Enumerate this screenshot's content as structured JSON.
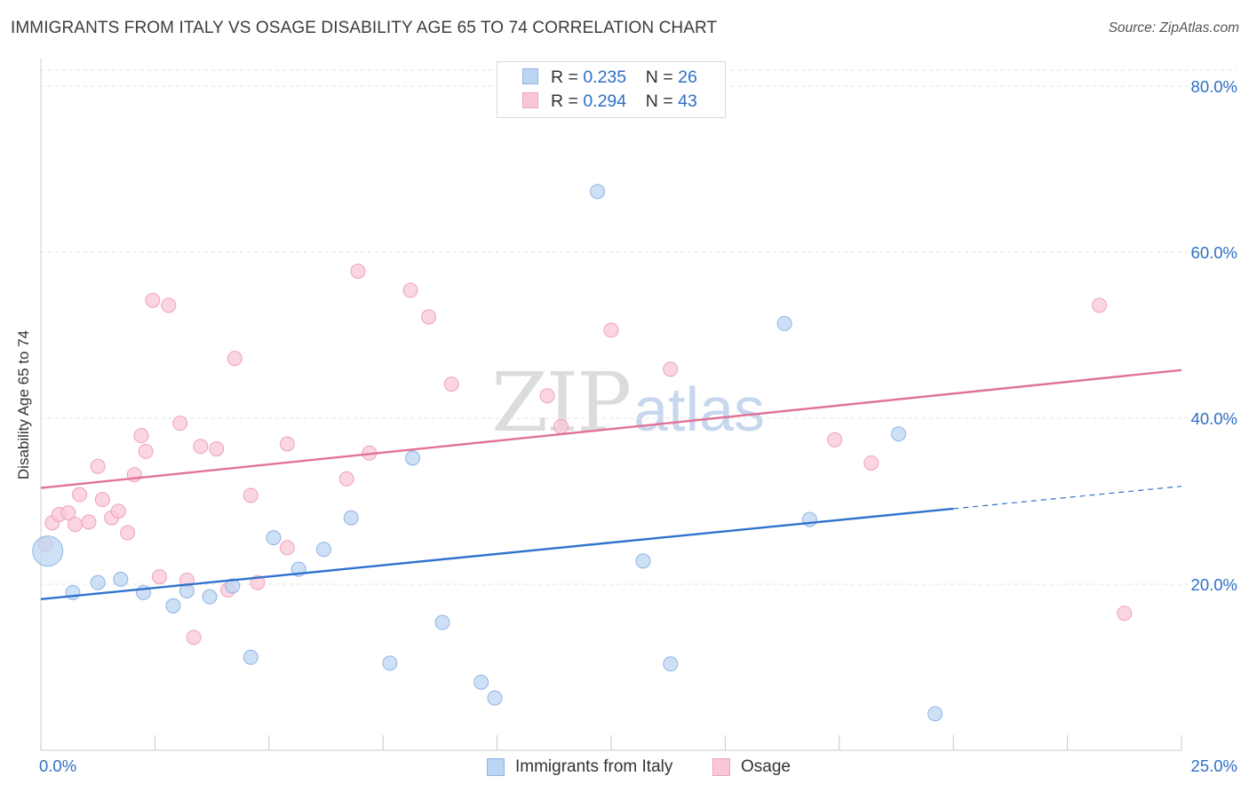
{
  "header": {
    "title": "IMMIGRANTS FROM ITALY VS OSAGE DISABILITY AGE 65 TO 74 CORRELATION CHART",
    "source": "Source: ZipAtlas.com"
  },
  "watermark": {
    "zip": "ZIP",
    "atlas": "atlas"
  },
  "legend_top": {
    "rows": [
      {
        "r_label": "R = ",
        "r_value": "0.235",
        "n_label": "N = ",
        "n_value": "26"
      },
      {
        "r_label": "R = ",
        "r_value": "0.294",
        "n_label": "N = ",
        "n_value": "43"
      }
    ]
  },
  "legend_bottom": {
    "items": [
      "Immigrants from Italy",
      "Osage"
    ]
  },
  "colors": {
    "blue_fill": "#bcd5f2",
    "blue_stroke": "#8fb5e2",
    "blue_line": "#2f72cc",
    "pink_fill": "#f9c7d5",
    "pink_stroke": "#eea3b9",
    "pink_line": "#e07398",
    "grid": "#e3e3e3",
    "tick_label": "#2f6fc6"
  },
  "chart_data": {
    "type": "scatter",
    "title": "IMMIGRANTS FROM ITALY VS OSAGE DISABILITY AGE 65 TO 74 CORRELATION CHART",
    "xlabel": "",
    "ylabel": "Disability Age 65 to 74",
    "xlim": [
      0,
      25
    ],
    "ylim": [
      0,
      80
    ],
    "x_tick_labels": [
      "0.0%",
      "25.0%"
    ],
    "y_ticks": [
      20,
      40,
      60,
      80
    ],
    "y_tick_labels": [
      "20.0%",
      "40.0%",
      "60.0%",
      "80.0%"
    ],
    "grid": true,
    "legend_position": "top-center",
    "series": [
      {
        "name": "Immigrants from Italy",
        "r": 0.235,
        "n": 26,
        "points": [
          {
            "x": 0.15,
            "y": 24.0,
            "big": true
          },
          {
            "x": 0.7,
            "y": 19.0
          },
          {
            "x": 1.25,
            "y": 20.2
          },
          {
            "x": 1.75,
            "y": 20.6
          },
          {
            "x": 2.25,
            "y": 19.0
          },
          {
            "x": 2.9,
            "y": 17.4
          },
          {
            "x": 3.2,
            "y": 19.2
          },
          {
            "x": 3.7,
            "y": 18.5
          },
          {
            "x": 4.2,
            "y": 19.8
          },
          {
            "x": 4.6,
            "y": 11.2
          },
          {
            "x": 5.1,
            "y": 25.6
          },
          {
            "x": 5.65,
            "y": 21.8
          },
          {
            "x": 6.2,
            "y": 24.2
          },
          {
            "x": 6.8,
            "y": 28.0
          },
          {
            "x": 7.65,
            "y": 10.5
          },
          {
            "x": 8.15,
            "y": 35.2
          },
          {
            "x": 8.8,
            "y": 15.4
          },
          {
            "x": 9.65,
            "y": 8.2
          },
          {
            "x": 9.95,
            "y": 6.3
          },
          {
            "x": 12.2,
            "y": 67.3
          },
          {
            "x": 13.2,
            "y": 22.8
          },
          {
            "x": 13.8,
            "y": 10.4
          },
          {
            "x": 16.3,
            "y": 51.4
          },
          {
            "x": 16.85,
            "y": 27.8
          },
          {
            "x": 18.8,
            "y": 38.1
          },
          {
            "x": 19.6,
            "y": 4.4
          }
        ],
        "trend": {
          "x0": 0,
          "y0": 18.2,
          "x1": 20.0,
          "y1": 29.1,
          "x_dash_end": 25,
          "y_dash_end": 31.8
        }
      },
      {
        "name": "Osage",
        "r": 0.294,
        "n": 43,
        "points": [
          {
            "x": 0.1,
            "y": 24.8
          },
          {
            "x": 0.25,
            "y": 27.4
          },
          {
            "x": 0.4,
            "y": 28.4
          },
          {
            "x": 0.6,
            "y": 28.6
          },
          {
            "x": 0.75,
            "y": 27.2
          },
          {
            "x": 0.85,
            "y": 30.8
          },
          {
            "x": 1.05,
            "y": 27.5
          },
          {
            "x": 1.25,
            "y": 34.2
          },
          {
            "x": 1.35,
            "y": 30.2
          },
          {
            "x": 1.55,
            "y": 28.0
          },
          {
            "x": 1.7,
            "y": 28.8
          },
          {
            "x": 1.9,
            "y": 26.2
          },
          {
            "x": 2.05,
            "y": 33.2
          },
          {
            "x": 2.2,
            "y": 37.9
          },
          {
            "x": 2.3,
            "y": 36.0
          },
          {
            "x": 2.45,
            "y": 54.2
          },
          {
            "x": 2.6,
            "y": 20.9
          },
          {
            "x": 2.8,
            "y": 53.6
          },
          {
            "x": 3.05,
            "y": 39.4
          },
          {
            "x": 3.2,
            "y": 20.5
          },
          {
            "x": 3.35,
            "y": 13.6
          },
          {
            "x": 3.5,
            "y": 36.6
          },
          {
            "x": 3.85,
            "y": 36.3
          },
          {
            "x": 4.1,
            "y": 19.3
          },
          {
            "x": 4.25,
            "y": 47.2
          },
          {
            "x": 4.6,
            "y": 30.7
          },
          {
            "x": 4.75,
            "y": 20.2
          },
          {
            "x": 5.4,
            "y": 36.9
          },
          {
            "x": 5.4,
            "y": 24.4
          },
          {
            "x": 6.7,
            "y": 32.7
          },
          {
            "x": 6.95,
            "y": 57.7
          },
          {
            "x": 7.2,
            "y": 35.8
          },
          {
            "x": 8.1,
            "y": 55.4
          },
          {
            "x": 8.5,
            "y": 52.2
          },
          {
            "x": 9.0,
            "y": 44.1
          },
          {
            "x": 11.1,
            "y": 42.7
          },
          {
            "x": 11.4,
            "y": 39.0
          },
          {
            "x": 12.5,
            "y": 50.6
          },
          {
            "x": 13.8,
            "y": 45.9
          },
          {
            "x": 17.4,
            "y": 37.4
          },
          {
            "x": 18.2,
            "y": 34.6
          },
          {
            "x": 23.2,
            "y": 53.6
          },
          {
            "x": 23.75,
            "y": 16.5
          }
        ],
        "trend": {
          "x0": 0,
          "y0": 31.6,
          "x1": 25,
          "y1": 45.8
        }
      }
    ]
  }
}
